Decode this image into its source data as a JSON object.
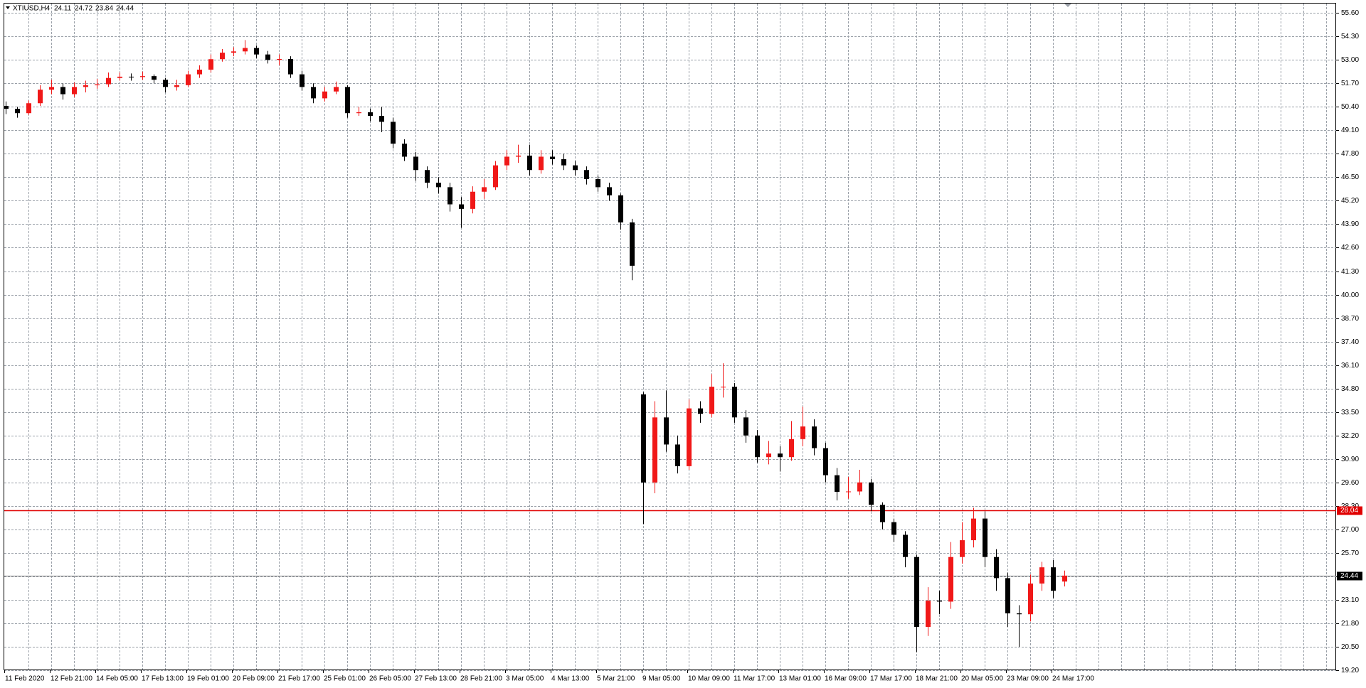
{
  "chart_data": {
    "type": "candlestick",
    "title": "XTIUSD,H4",
    "up_color": "#f01818",
    "down_color": "#000000",
    "grid": true,
    "ylim": [
      19.2,
      56.12
    ],
    "yticks": [
      {
        "value": 55.6,
        "label": "55.60"
      },
      {
        "value": 54.3,
        "label": "54.30"
      },
      {
        "value": 53,
        "label": "53.00"
      },
      {
        "value": 51.7,
        "label": "51.70"
      },
      {
        "value": 50.4,
        "label": "50.40"
      },
      {
        "value": 49.1,
        "label": "49.10"
      },
      {
        "value": 47.8,
        "label": "47.80"
      },
      {
        "value": 46.5,
        "label": "46.50"
      },
      {
        "value": 45.2,
        "label": "45.20"
      },
      {
        "value": 43.9,
        "label": "43.90"
      },
      {
        "value": 42.6,
        "label": "42.60"
      },
      {
        "value": 41.3,
        "label": "41.30"
      },
      {
        "value": 40,
        "label": "40.00"
      },
      {
        "value": 38.7,
        "label": "38.70"
      },
      {
        "value": 37.4,
        "label": "37.40"
      },
      {
        "value": 36.1,
        "label": "36.10"
      },
      {
        "value": 34.8,
        "label": "34.80"
      },
      {
        "value": 33.5,
        "label": "33.50"
      },
      {
        "value": 32.2,
        "label": "32.20"
      },
      {
        "value": 30.9,
        "label": "30.90"
      },
      {
        "value": 29.6,
        "label": "29.60"
      },
      {
        "value": 28.3,
        "label": "28.30"
      },
      {
        "value": 27,
        "label": "27.00"
      },
      {
        "value": 25.7,
        "label": "25.70"
      },
      {
        "value": 24.4,
        "label": "24.40"
      },
      {
        "value": 23.1,
        "label": "23.10"
      },
      {
        "value": 21.8,
        "label": "21.80"
      },
      {
        "value": 20.5,
        "label": "20.50"
      },
      {
        "value": 19.2,
        "label": "19.20"
      }
    ],
    "lines": [
      {
        "value": 28.04,
        "color": "#e00000"
      },
      {
        "value": 24.44,
        "color": "#808080"
      }
    ],
    "categories": [
      "11 Feb 2020",
      null,
      null,
      null,
      "12 Feb 21:00",
      null,
      null,
      null,
      "14 Feb 05:00",
      null,
      null,
      null,
      "17 Feb 13:00",
      null,
      null,
      null,
      "19 Feb 01:00",
      null,
      null,
      null,
      "20 Feb 09:00",
      null,
      null,
      null,
      "21 Feb 17:00",
      null,
      null,
      null,
      "25 Feb 01:00",
      null,
      null,
      null,
      "26 Feb 05:00",
      null,
      null,
      null,
      "27 Feb 13:00",
      null,
      null,
      null,
      "28 Feb 21:00",
      null,
      null,
      null,
      "3 Mar 05:00",
      null,
      null,
      null,
      "4 Mar 13:00",
      null,
      null,
      null,
      "5 Mar 21:00",
      null,
      null,
      null,
      "9 Mar 05:00",
      null,
      null,
      null,
      "10 Mar 09:00",
      null,
      null,
      null,
      "11 Mar 17:00",
      null,
      null,
      null,
      "13 Mar 01:00",
      null,
      null,
      null,
      "16 Mar 09:00",
      null,
      null,
      null,
      "17 Mar 17:00",
      null,
      null,
      null,
      "18 Mar 21:00",
      null,
      null,
      null,
      "20 Mar 05:00",
      null,
      null,
      null,
      "23 Mar 09:00",
      null,
      null,
      null,
      "24 Mar 17:00",
      null
    ],
    "ohlc": [
      [
        50.45,
        50.7,
        50.0,
        50.29
      ],
      [
        50.29,
        50.4,
        49.8,
        50.05
      ],
      [
        50.05,
        50.75,
        49.95,
        50.6
      ],
      [
        50.6,
        51.6,
        50.45,
        51.35
      ],
      [
        51.35,
        51.9,
        51.1,
        51.5
      ],
      [
        51.5,
        51.7,
        50.8,
        51.1
      ],
      [
        51.1,
        51.75,
        50.95,
        51.5
      ],
      [
        51.5,
        51.85,
        51.2,
        51.6
      ],
      [
        51.6,
        51.95,
        51.4,
        51.65
      ],
      [
        51.65,
        52.3,
        51.5,
        52.0
      ],
      [
        52.0,
        52.3,
        51.85,
        52.07
      ],
      [
        52.07,
        52.25,
        51.85,
        52.05
      ],
      [
        52.05,
        52.35,
        51.9,
        52.1
      ],
      [
        52.1,
        52.2,
        51.7,
        51.9
      ],
      [
        51.9,
        52.0,
        51.2,
        51.5
      ],
      [
        51.5,
        51.9,
        51.3,
        51.6
      ],
      [
        51.6,
        52.4,
        51.5,
        52.2
      ],
      [
        52.2,
        52.7,
        52.0,
        52.46
      ],
      [
        52.46,
        53.3,
        52.3,
        53.04
      ],
      [
        53.04,
        53.6,
        52.9,
        53.4
      ],
      [
        53.4,
        53.7,
        53.2,
        53.47
      ],
      [
        53.47,
        54.1,
        53.3,
        53.66
      ],
      [
        53.66,
        53.8,
        53.1,
        53.3
      ],
      [
        53.3,
        53.5,
        52.8,
        53.0
      ],
      [
        53.0,
        53.3,
        52.7,
        53.05
      ],
      [
        53.05,
        53.2,
        52.0,
        52.2
      ],
      [
        52.2,
        52.4,
        51.3,
        51.5
      ],
      [
        51.5,
        51.7,
        50.6,
        50.87
      ],
      [
        50.87,
        51.5,
        50.7,
        51.25
      ],
      [
        51.25,
        51.8,
        51.1,
        51.5
      ],
      [
        51.5,
        51.6,
        49.8,
        50.05
      ],
      [
        50.05,
        50.4,
        49.9,
        50.1
      ],
      [
        50.1,
        50.3,
        49.6,
        49.9
      ],
      [
        49.9,
        50.4,
        49.0,
        49.57
      ],
      [
        49.57,
        49.8,
        48.1,
        48.36
      ],
      [
        48.36,
        48.6,
        47.4,
        47.64
      ],
      [
        47.64,
        47.9,
        46.3,
        46.9
      ],
      [
        46.9,
        47.1,
        45.9,
        46.2
      ],
      [
        46.2,
        46.5,
        45.6,
        45.95
      ],
      [
        45.95,
        46.2,
        44.6,
        45.0
      ],
      [
        45.0,
        45.4,
        43.7,
        44.75
      ],
      [
        44.75,
        46.0,
        44.5,
        45.7
      ],
      [
        45.7,
        46.4,
        45.3,
        45.95
      ],
      [
        45.95,
        47.4,
        45.8,
        47.16
      ],
      [
        47.16,
        48.0,
        46.9,
        47.64
      ],
      [
        47.64,
        48.3,
        47.3,
        47.7
      ],
      [
        47.7,
        48.3,
        46.6,
        46.9
      ],
      [
        46.9,
        48.0,
        46.7,
        47.64
      ],
      [
        47.64,
        48.0,
        47.2,
        47.5
      ],
      [
        47.5,
        47.8,
        46.9,
        47.16
      ],
      [
        47.16,
        47.4,
        46.6,
        46.9
      ],
      [
        46.9,
        47.1,
        46.1,
        46.4
      ],
      [
        46.4,
        46.6,
        45.7,
        45.95
      ],
      [
        45.95,
        46.2,
        45.2,
        45.5
      ],
      [
        45.5,
        45.6,
        43.6,
        44.0
      ],
      [
        44.0,
        44.2,
        40.8,
        41.6
      ],
      [
        34.48,
        34.6,
        27.3,
        29.6
      ],
      [
        29.6,
        34.1,
        29.0,
        33.2
      ],
      [
        33.2,
        34.7,
        31.3,
        31.7
      ],
      [
        31.7,
        32.2,
        30.1,
        30.5
      ],
      [
        30.5,
        34.2,
        30.3,
        33.7
      ],
      [
        33.7,
        34.1,
        32.9,
        33.4
      ],
      [
        33.4,
        35.6,
        33.2,
        34.9
      ],
      [
        34.9,
        36.2,
        34.3,
        34.9
      ],
      [
        34.9,
        35.1,
        32.9,
        33.2
      ],
      [
        33.2,
        33.6,
        31.8,
        32.2
      ],
      [
        32.2,
        32.5,
        30.7,
        31.0
      ],
      [
        31.0,
        31.9,
        30.6,
        31.2
      ],
      [
        31.2,
        31.6,
        30.2,
        31.0
      ],
      [
        31.0,
        33.0,
        30.8,
        32.0
      ],
      [
        32.0,
        33.8,
        31.6,
        32.7
      ],
      [
        32.7,
        33.1,
        31.1,
        31.5
      ],
      [
        31.5,
        31.8,
        29.6,
        30.0
      ],
      [
        30.0,
        30.4,
        28.6,
        29.08
      ],
      [
        29.08,
        29.9,
        28.7,
        29.1
      ],
      [
        29.1,
        30.3,
        28.9,
        29.6
      ],
      [
        29.6,
        29.8,
        28.0,
        28.36
      ],
      [
        28.36,
        28.5,
        27.0,
        27.4
      ],
      [
        27.4,
        27.6,
        26.3,
        26.7
      ],
      [
        26.7,
        26.9,
        24.9,
        25.47
      ],
      [
        25.47,
        25.6,
        20.2,
        21.6
      ],
      [
        21.6,
        23.8,
        21.1,
        23.05
      ],
      [
        23.05,
        23.6,
        22.3,
        23.0
      ],
      [
        23.0,
        26.3,
        22.6,
        25.47
      ],
      [
        25.47,
        27.4,
        25.1,
        26.4
      ],
      [
        26.4,
        28.2,
        26.0,
        27.6
      ],
      [
        27.6,
        28.0,
        24.9,
        25.47
      ],
      [
        25.47,
        25.9,
        23.6,
        24.3
      ],
      [
        24.3,
        24.6,
        21.6,
        22.35
      ],
      [
        22.35,
        22.8,
        20.5,
        22.3
      ],
      [
        22.3,
        24.5,
        21.9,
        24.0
      ],
      [
        24.0,
        25.2,
        23.6,
        24.9
      ],
      [
        24.9,
        25.3,
        23.2,
        23.6
      ],
      [
        24.11,
        24.72,
        23.84,
        24.44
      ]
    ]
  }
}
